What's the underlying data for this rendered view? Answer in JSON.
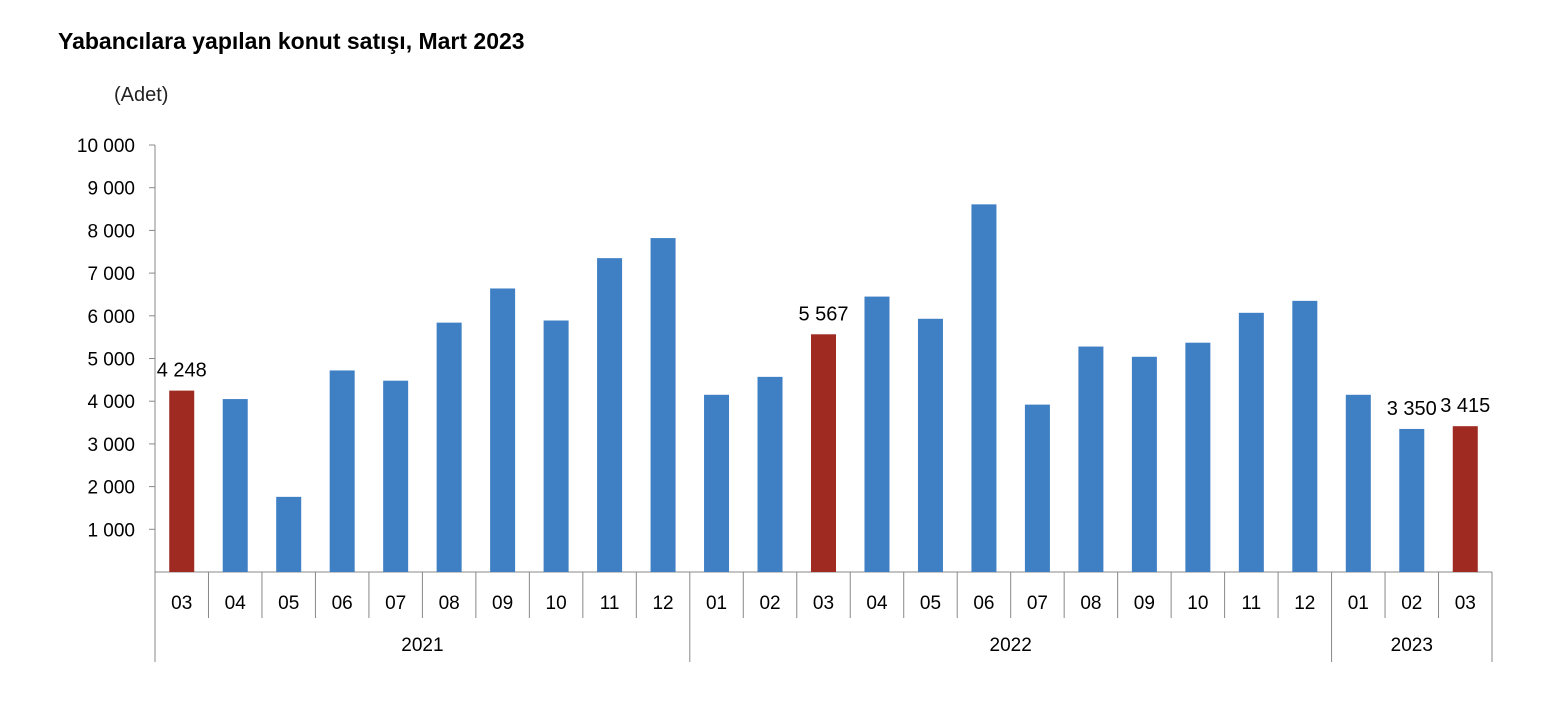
{
  "title": "Yabancılara yapılan konut satışı, Mart 2023",
  "chart_data": {
    "type": "bar",
    "unit_label": "(Adet)",
    "ylim": [
      0,
      10000
    ],
    "yticks": [
      {
        "value": 1000,
        "label": "1 000"
      },
      {
        "value": 2000,
        "label": "2 000"
      },
      {
        "value": 3000,
        "label": "3 000"
      },
      {
        "value": 4000,
        "label": "4 000"
      },
      {
        "value": 5000,
        "label": "5 000"
      },
      {
        "value": 6000,
        "label": "6 000"
      },
      {
        "value": 7000,
        "label": "7 000"
      },
      {
        "value": 8000,
        "label": "8 000"
      },
      {
        "value": 9000,
        "label": "9 000"
      },
      {
        "value": 10000,
        "label": "10 000"
      }
    ],
    "categories": [
      "03",
      "04",
      "05",
      "06",
      "07",
      "08",
      "09",
      "10",
      "11",
      "12",
      "01",
      "02",
      "03",
      "04",
      "05",
      "06",
      "07",
      "08",
      "09",
      "10",
      "11",
      "12",
      "01",
      "02",
      "03"
    ],
    "values": [
      4248,
      4050,
      1760,
      4720,
      4480,
      5840,
      6640,
      5890,
      7350,
      7820,
      4150,
      4570,
      5567,
      6450,
      5930,
      8610,
      3920,
      5280,
      5040,
      5370,
      6070,
      6350,
      4150,
      3350,
      3415
    ],
    "highlight": [
      0,
      12,
      24
    ],
    "data_labels": [
      {
        "index": 0,
        "text": "4 248"
      },
      {
        "index": 12,
        "text": "5 567"
      },
      {
        "index": 23,
        "text": "3 350"
      },
      {
        "index": 24,
        "text": "3 415"
      }
    ],
    "years": [
      {
        "label": "2021",
        "start": 0,
        "end": 9
      },
      {
        "label": "2022",
        "start": 10,
        "end": 21
      },
      {
        "label": "2023",
        "start": 22,
        "end": 24
      }
    ],
    "colors": {
      "bar": "#3f7fc4",
      "highlight": "#9e2a22",
      "axis": "#888888"
    },
    "grid": false,
    "legend": "none"
  }
}
